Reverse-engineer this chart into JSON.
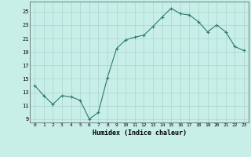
{
  "x": [
    0,
    1,
    2,
    3,
    4,
    5,
    6,
    7,
    8,
    9,
    10,
    11,
    12,
    13,
    14,
    15,
    16,
    17,
    18,
    19,
    20,
    21,
    22,
    23
  ],
  "y": [
    14.0,
    12.5,
    11.2,
    12.5,
    12.3,
    11.8,
    9.0,
    10.0,
    15.2,
    19.5,
    20.8,
    21.2,
    21.5,
    22.8,
    24.2,
    25.5,
    24.7,
    24.5,
    23.5,
    22.0,
    23.0,
    22.0,
    19.8,
    19.2
  ],
  "line_color": "#2d7a6e",
  "marker": "+",
  "marker_size": 3,
  "bg_color": "#c8eee8",
  "grid_color": "#aad4cc",
  "xlabel": "Humidex (Indice chaleur)",
  "xlim": [
    -0.5,
    23.5
  ],
  "ylim": [
    8.5,
    26.5
  ],
  "yticks": [
    9,
    11,
    13,
    15,
    17,
    19,
    21,
    23,
    25
  ],
  "xticks": [
    0,
    1,
    2,
    3,
    4,
    5,
    6,
    7,
    8,
    9,
    10,
    11,
    12,
    13,
    14,
    15,
    16,
    17,
    18,
    19,
    20,
    21,
    22,
    23
  ]
}
